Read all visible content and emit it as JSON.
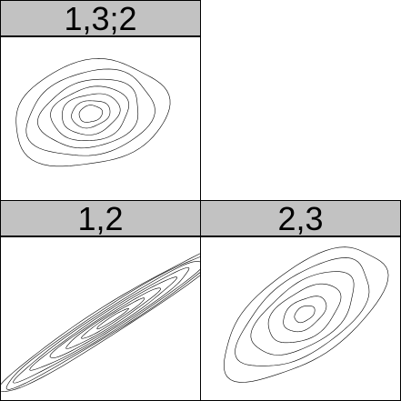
{
  "chart_data": {
    "type": "contour",
    "panels": [
      {
        "id": "p132",
        "title": "1,3;2",
        "center": [
          0.45,
          0.47
        ],
        "angle_deg": -24,
        "rx": [
          0.06,
          0.1,
          0.15,
          0.2,
          0.26,
          0.33,
          0.4
        ],
        "ry": [
          0.05,
          0.08,
          0.12,
          0.16,
          0.2,
          0.25,
          0.31
        ]
      },
      {
        "id": "p12",
        "title": "1,2",
        "center": [
          0.56,
          0.5
        ],
        "angle_deg": -38,
        "rx": [
          0.1,
          0.2,
          0.3,
          0.4,
          0.5,
          0.6,
          0.68,
          0.74
        ],
        "ry": [
          0.012,
          0.022,
          0.032,
          0.042,
          0.052,
          0.062,
          0.072,
          0.082
        ]
      },
      {
        "id": "p23",
        "title": "2,3",
        "center": [
          0.52,
          0.47
        ],
        "angle_deg": -45,
        "rx": [
          0.06,
          0.13,
          0.22,
          0.32,
          0.42,
          0.52
        ],
        "ry": [
          0.04,
          0.08,
          0.13,
          0.17,
          0.21,
          0.25
        ]
      }
    ],
    "colors": {
      "strip": "#c2c2c2",
      "line": "#000000",
      "background": "#ffffff"
    }
  }
}
